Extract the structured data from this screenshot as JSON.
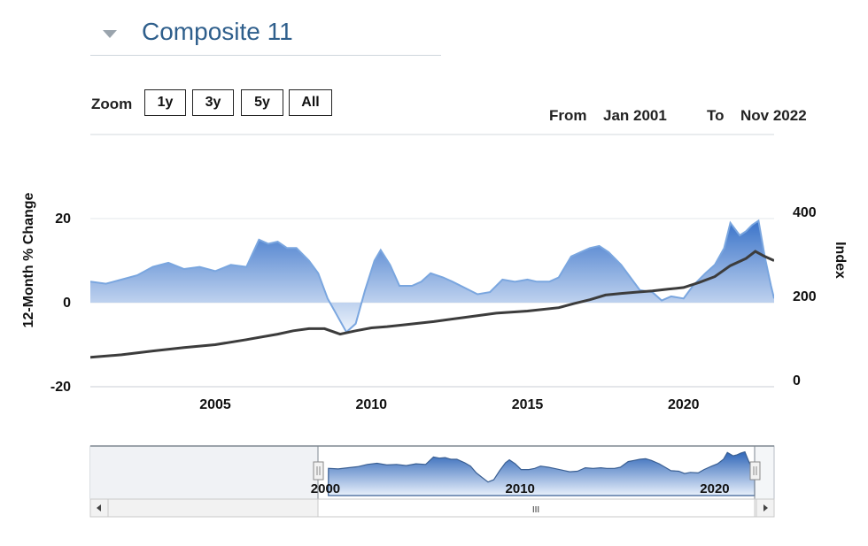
{
  "header": {
    "title": "Composite 11",
    "toggle_icon": "triangle-down-icon"
  },
  "zoom": {
    "label": "Zoom",
    "buttons": [
      "1y",
      "3y",
      "5y",
      "All"
    ]
  },
  "range": {
    "from_label": "From",
    "from_value": "Jan 2001",
    "to_label": "To",
    "to_value": "Nov 2022"
  },
  "navigator": {
    "x_ticks": [
      "2000",
      "2010",
      "2020"
    ],
    "handle_icon": "grip-lines-icon",
    "scroll_left_icon": "arrow-left-icon",
    "scroll_right_icon": "arrow-right-icon",
    "scrollbar_grip_text": "III"
  },
  "chart_data": {
    "type": "area",
    "xlabel": "",
    "ylabel_left": "12-Month % Change",
    "ylabel_right": "Index",
    "xlim": [
      2001.0,
      2022.9
    ],
    "ylim_left": [
      -20,
      20
    ],
    "ylim_right": [
      0,
      400
    ],
    "x_ticks": [
      "2005",
      "2010",
      "2015",
      "2020"
    ],
    "y_ticks_left": [
      "20",
      "0",
      "-20"
    ],
    "y_ticks_right": [
      "400",
      "200",
      "0"
    ],
    "colors": {
      "area_top": "#3a73c9",
      "area_bottom": "#eef4fc",
      "area_line": "#7aa6df",
      "index_line": "#3c3c3c"
    },
    "series": [
      {
        "name": "",
        "axis": "left",
        "kind": "area",
        "points": [
          [
            2001.0,
            5
          ],
          [
            2001.5,
            4.5
          ],
          [
            2002.0,
            5.5
          ],
          [
            2002.5,
            6.5
          ],
          [
            2003.0,
            8.5
          ],
          [
            2003.5,
            9.5
          ],
          [
            2004.0,
            8
          ],
          [
            2004.5,
            8.5
          ],
          [
            2005.0,
            7.5
          ],
          [
            2005.5,
            9
          ],
          [
            2006.0,
            8.5
          ],
          [
            2006.4,
            15
          ],
          [
            2006.7,
            14
          ],
          [
            2007.0,
            14.5
          ],
          [
            2007.3,
            13
          ],
          [
            2007.6,
            13
          ],
          [
            2008.0,
            10
          ],
          [
            2008.3,
            7
          ],
          [
            2008.6,
            1
          ],
          [
            2008.9,
            -3
          ],
          [
            2009.2,
            -7
          ],
          [
            2009.5,
            -5
          ],
          [
            2009.8,
            3
          ],
          [
            2010.1,
            10
          ],
          [
            2010.3,
            12.5
          ],
          [
            2010.6,
            9
          ],
          [
            2010.9,
            4
          ],
          [
            2011.3,
            4
          ],
          [
            2011.6,
            5
          ],
          [
            2011.9,
            7
          ],
          [
            2012.3,
            6
          ],
          [
            2012.6,
            5
          ],
          [
            2013.0,
            3.5
          ],
          [
            2013.4,
            2
          ],
          [
            2013.8,
            2.5
          ],
          [
            2014.2,
            5.5
          ],
          [
            2014.6,
            5
          ],
          [
            2015.0,
            5.5
          ],
          [
            2015.3,
            5
          ],
          [
            2015.7,
            5
          ],
          [
            2016.0,
            6
          ],
          [
            2016.4,
            11
          ],
          [
            2016.7,
            12
          ],
          [
            2017.0,
            13
          ],
          [
            2017.3,
            13.5
          ],
          [
            2017.6,
            12
          ],
          [
            2018.0,
            9
          ],
          [
            2018.3,
            6
          ],
          [
            2018.6,
            3
          ],
          [
            2019.0,
            2.5
          ],
          [
            2019.3,
            0.5
          ],
          [
            2019.6,
            1.5
          ],
          [
            2020.0,
            1
          ],
          [
            2020.3,
            4
          ],
          [
            2020.7,
            7
          ],
          [
            2021.0,
            9
          ],
          [
            2021.3,
            13
          ],
          [
            2021.5,
            19
          ],
          [
            2021.8,
            16
          ],
          [
            2022.0,
            17
          ],
          [
            2022.2,
            18.5
          ],
          [
            2022.4,
            19.5
          ],
          [
            2022.6,
            11
          ],
          [
            2022.8,
            4
          ],
          [
            2022.9,
            1
          ]
        ]
      },
      {
        "name": "",
        "axis": "right",
        "kind": "line",
        "points": [
          [
            2001.0,
            70
          ],
          [
            2002.0,
            76
          ],
          [
            2003.0,
            85
          ],
          [
            2004.0,
            93
          ],
          [
            2005.0,
            100
          ],
          [
            2006.0,
            112
          ],
          [
            2007.0,
            125
          ],
          [
            2007.5,
            133
          ],
          [
            2008.0,
            138
          ],
          [
            2008.5,
            138
          ],
          [
            2009.0,
            125
          ],
          [
            2009.5,
            133
          ],
          [
            2010.0,
            140
          ],
          [
            2010.5,
            143
          ],
          [
            2011.0,
            147
          ],
          [
            2012.0,
            155
          ],
          [
            2013.0,
            165
          ],
          [
            2014.0,
            175
          ],
          [
            2015.0,
            180
          ],
          [
            2016.0,
            188
          ],
          [
            2016.5,
            198
          ],
          [
            2017.0,
            207
          ],
          [
            2017.5,
            218
          ],
          [
            2018.0,
            222
          ],
          [
            2018.5,
            225
          ],
          [
            2019.0,
            228
          ],
          [
            2019.5,
            232
          ],
          [
            2020.0,
            236
          ],
          [
            2020.5,
            248
          ],
          [
            2021.0,
            262
          ],
          [
            2021.5,
            288
          ],
          [
            2022.0,
            305
          ],
          [
            2022.3,
            322
          ],
          [
            2022.6,
            310
          ],
          [
            2022.9,
            300
          ]
        ]
      }
    ]
  }
}
